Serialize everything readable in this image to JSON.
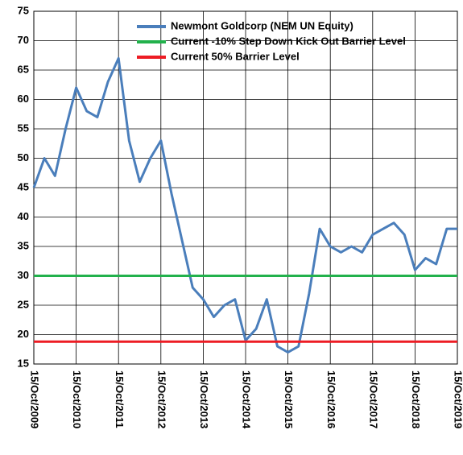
{
  "chart_data": {
    "type": "line",
    "x": [
      "15/Oct/2009",
      "15/Jan/2010",
      "15/Apr/2010",
      "15/Jul/2010",
      "15/Oct/2010",
      "15/Jan/2011",
      "15/Apr/2011",
      "15/Jul/2011",
      "15/Oct/2011",
      "15/Jan/2012",
      "15/Apr/2012",
      "15/Jul/2012",
      "15/Oct/2012",
      "15/Jan/2013",
      "15/Apr/2013",
      "15/Jul/2013",
      "15/Oct/2013",
      "15/Jan/2014",
      "15/Apr/2014",
      "15/Jul/2014",
      "15/Oct/2014",
      "15/Jan/2015",
      "15/Apr/2015",
      "15/Jul/2015",
      "15/Oct/2015",
      "15/Jan/2016",
      "15/Apr/2016",
      "15/Jul/2016",
      "15/Oct/2016",
      "15/Jan/2017",
      "15/Apr/2017",
      "15/Jul/2017",
      "15/Oct/2017",
      "15/Jan/2018",
      "15/Apr/2018",
      "15/Jul/2018",
      "15/Oct/2018",
      "15/Jan/2019",
      "15/Apr/2019",
      "15/Jul/2019",
      "15/Oct/2019"
    ],
    "series": [
      {
        "name": "Newmont Goldcorp (NEM UN Equity)",
        "color": "#4a7ebb",
        "values": [
          45,
          50,
          47,
          55,
          62,
          58,
          57,
          63,
          67,
          53,
          46,
          50,
          53,
          44,
          36,
          28,
          26,
          23,
          25,
          26,
          19,
          21,
          26,
          18,
          17,
          18,
          27,
          38,
          35,
          34,
          35,
          34,
          37,
          38,
          39,
          37,
          31,
          33,
          32,
          38,
          38
        ]
      },
      {
        "name": "Current -10% Step Down Kick Out Barrier Level",
        "color": "#22b14c",
        "x": [
          "15/Oct/2009",
          "15/Oct/2019"
        ],
        "values": [
          30,
          30
        ]
      },
      {
        "name": "Current 50% Barrier Level",
        "color": "#ed1c24",
        "x": [
          "15/Oct/2009",
          "15/Oct/2019"
        ],
        "values": [
          18.8,
          18.8
        ]
      }
    ],
    "ylim": [
      15,
      75
    ],
    "yticks": [
      15,
      20,
      25,
      30,
      35,
      40,
      45,
      50,
      55,
      60,
      65,
      70,
      75
    ],
    "xticks": [
      "15/Oct/2009",
      "15/Oct/2010",
      "15/Oct/2011",
      "15/Oct/2012",
      "15/Oct/2013",
      "15/Oct/2014",
      "15/Oct/2015",
      "15/Oct/2016",
      "15/Oct/2017",
      "15/Oct/2018",
      "15/Oct/2019"
    ],
    "grid": true
  }
}
